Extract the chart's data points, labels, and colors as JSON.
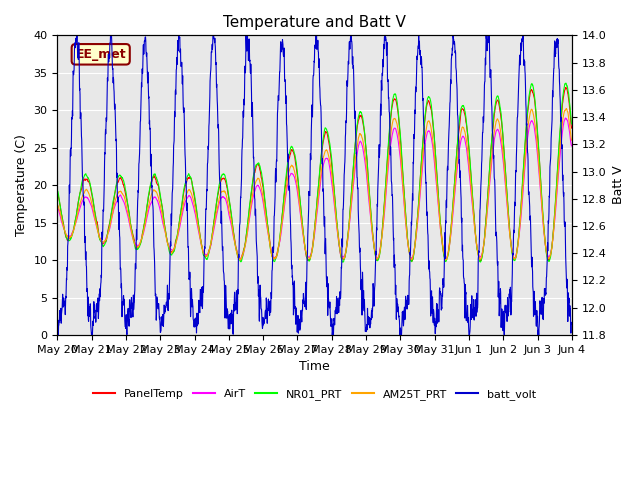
{
  "title": "Temperature and Batt V",
  "xlabel": "Time",
  "ylabel_left": "Temperature (C)",
  "ylabel_right": "Batt V",
  "ylim_left": [
    0,
    40
  ],
  "ylim_right": [
    11.8,
    14.0
  ],
  "yticks_left": [
    0,
    5,
    10,
    15,
    20,
    25,
    30,
    35,
    40
  ],
  "yticks_right": [
    11.8,
    12.0,
    12.2,
    12.4,
    12.6,
    12.8,
    13.0,
    13.2,
    13.4,
    13.6,
    13.8,
    14.0
  ],
  "annotation_text": "EE_met",
  "annotation_color": "#8B0000",
  "bg_color": "#e8e8e8",
  "colors": {
    "PanelTemp": "#ff0000",
    "AirT": "#ff00ff",
    "NR01_PRT": "#00ff00",
    "AM25T_PRT": "#ffa500",
    "batt_volt": "#0000cd"
  },
  "title_fontsize": 11,
  "label_fontsize": 9,
  "tick_fontsize": 8
}
